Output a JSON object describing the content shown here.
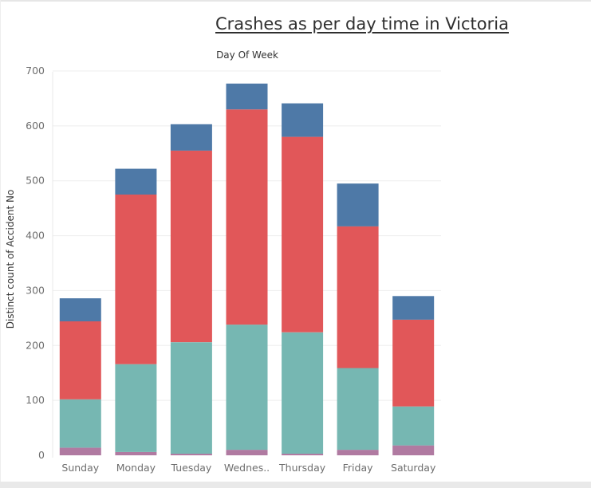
{
  "chart_data": {
    "type": "bar",
    "stacked": true,
    "title": "Crashes as per day time in Victoria",
    "column_header": "Day Of Week",
    "xlabel": "",
    "ylabel": "Distinct count of Accident No",
    "ylim": [
      0,
      700
    ],
    "y_ticks": [
      "0",
      "100",
      "200",
      "300",
      "400",
      "500",
      "600",
      "700"
    ],
    "categories": [
      "Sunday",
      "Monday",
      "Tuesday",
      "Wednes..",
      "Thursday",
      "Friday",
      "Saturday"
    ],
    "grid": true,
    "legend": "none",
    "series": [
      {
        "color": "#b07aa1",
        "values": [
          14,
          6,
          3,
          10,
          3,
          10,
          18
        ]
      },
      {
        "color": "#76b7b2",
        "values": [
          88,
          160,
          203,
          228,
          221,
          149,
          71
        ]
      },
      {
        "color": "#e15759",
        "values": [
          142,
          309,
          349,
          392,
          356,
          258,
          158
        ]
      },
      {
        "color": "#4e79a7",
        "values": [
          42,
          47,
          48,
          47,
          61,
          78,
          43
        ]
      }
    ]
  }
}
